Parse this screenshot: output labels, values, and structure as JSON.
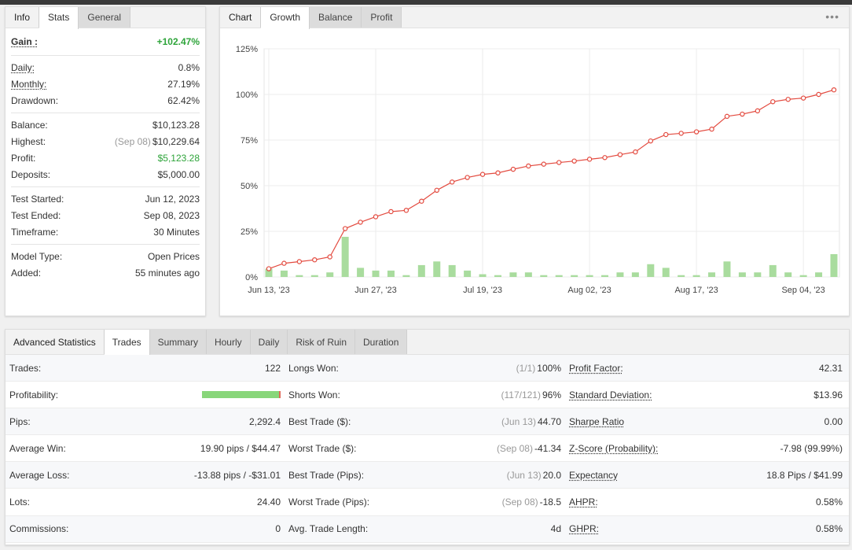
{
  "info_panel": {
    "tabs": [
      "Info",
      "Stats",
      "General"
    ],
    "gain": {
      "label": "Gain :",
      "value": "+102.47%"
    },
    "groups": [
      [
        {
          "label": "Daily:",
          "value": "0.8%",
          "underline": true
        },
        {
          "label": "Monthly:",
          "value": "27.19%",
          "underline": true
        },
        {
          "label": "Drawdown:",
          "value": "62.42%",
          "underline": false
        }
      ],
      [
        {
          "label": "Balance:",
          "value": "$10,123.28"
        },
        {
          "label": "Highest:",
          "sub": "(Sep 08)",
          "value": "$10,229.64"
        },
        {
          "label": "Profit:",
          "value": "$5,123.28",
          "color": "green"
        },
        {
          "label": "Deposits:",
          "value": "$5,000.00"
        }
      ],
      [
        {
          "label": "Test Started:",
          "value": "Jun 12, 2023"
        },
        {
          "label": "Test Ended:",
          "value": "Sep 08, 2023"
        },
        {
          "label": "Timeframe:",
          "value": "30 Minutes"
        }
      ],
      [
        {
          "label": "Model Type:",
          "value": "Open Prices"
        },
        {
          "label": "Added:",
          "value": "55 minutes ago"
        }
      ]
    ]
  },
  "chart_panel": {
    "tabs": [
      "Chart",
      "Growth",
      "Balance",
      "Profit"
    ],
    "menu_icon": "ellipsis-icon"
  },
  "chart_data": {
    "type": "line",
    "y_ticks": [
      "125%",
      "100%",
      "75%",
      "50%",
      "25%",
      "0%"
    ],
    "ylim": [
      0,
      125
    ],
    "x_ticks": [
      "Jun 13, '23",
      "Jun 27, '23",
      "Jul 19, '23",
      "Aug 02, '23",
      "Aug 17, '23",
      "Sep 04, '23"
    ],
    "x_tick_index": [
      0,
      7,
      14,
      21,
      28,
      35
    ],
    "growth": [
      4.5,
      7.5,
      8.4,
      9.4,
      11.0,
      26.5,
      30.0,
      33.0,
      35.8,
      36.5,
      41.5,
      47.5,
      52.0,
      54.5,
      56.2,
      57.0,
      59.0,
      60.8,
      61.8,
      62.7,
      63.5,
      64.5,
      65.4,
      67.0,
      68.5,
      74.5,
      78.0,
      78.7,
      79.5,
      81.0,
      88.0,
      89.2,
      91.0,
      96.0,
      97.3,
      98.0,
      100.0,
      102.5
    ],
    "bars": [
      4.5,
      3.5,
      1.0,
      1.0,
      2.5,
      22.0,
      5.0,
      3.5,
      3.5,
      1.0,
      6.5,
      8.5,
      6.5,
      3.5,
      1.5,
      1.0,
      2.5,
      2.5,
      1.0,
      1.0,
      1.0,
      1.0,
      1.0,
      2.5,
      2.5,
      7.0,
      5.0,
      1.0,
      1.0,
      2.5,
      8.5,
      2.5,
      2.5,
      6.5,
      2.5,
      1.0,
      2.5,
      12.5
    ],
    "colors": {
      "line": "#e34a3f",
      "bar": "#a9dc9e"
    }
  },
  "adv_panel": {
    "tabs": [
      "Advanced Statistics",
      "Trades",
      "Summary",
      "Hourly",
      "Daily",
      "Risk of Ruin",
      "Duration"
    ],
    "col1": [
      {
        "label": "Trades:",
        "value": "122"
      },
      {
        "label": "Profitability:",
        "bar": true,
        "win_fraction": 0.975
      },
      {
        "label": "Pips:",
        "value": "2,292.4"
      },
      {
        "label": "Average Win:",
        "value": "19.90 pips / $44.47"
      },
      {
        "label": "Average Loss:",
        "value": "-13.88 pips / -$31.01"
      },
      {
        "label": "Lots:",
        "value": "24.40"
      },
      {
        "label": "Commissions:",
        "value": "0"
      }
    ],
    "col2": [
      {
        "label": "Longs Won:",
        "sub": "(1/1)",
        "value": "100%"
      },
      {
        "label": "Shorts Won:",
        "sub": "(117/121)",
        "value": "96%"
      },
      {
        "label": "Best Trade ($):",
        "sub": "(Jun 13)",
        "value": "44.70"
      },
      {
        "label": "Worst Trade ($):",
        "sub": "(Sep 08)",
        "value": "-41.34"
      },
      {
        "label": "Best Trade (Pips):",
        "sub": "(Jun 13)",
        "value": "20.0"
      },
      {
        "label": "Worst Trade (Pips):",
        "sub": "(Sep 08)",
        "value": "-18.5"
      },
      {
        "label": "Avg. Trade Length:",
        "value": "4d"
      }
    ],
    "col3": [
      {
        "label": "Profit Factor:",
        "value": "42.31"
      },
      {
        "label": "Standard Deviation:",
        "value": "$13.96"
      },
      {
        "label": "Sharpe Ratio",
        "value": "0.00"
      },
      {
        "label": "Z-Score (Probability):",
        "value": "-7.98 (99.99%)"
      },
      {
        "label": "Expectancy",
        "value": "18.8 Pips / $41.99"
      },
      {
        "label": "AHPR:",
        "value": "0.58%"
      },
      {
        "label": "GHPR:",
        "value": "0.58%"
      }
    ]
  }
}
